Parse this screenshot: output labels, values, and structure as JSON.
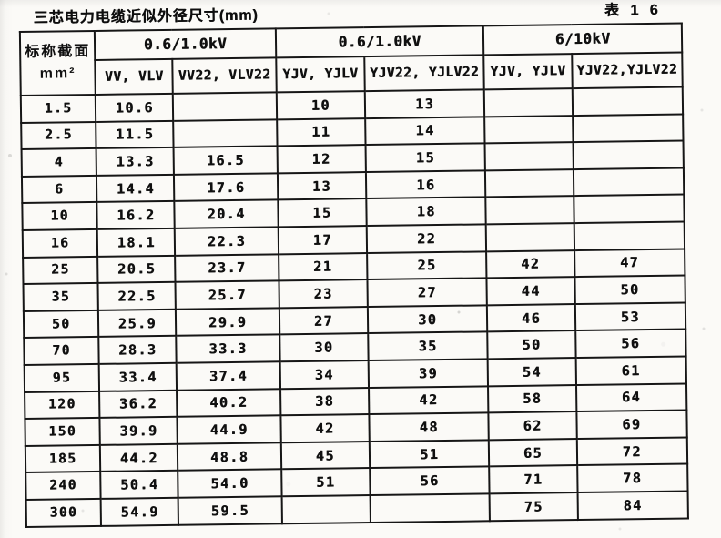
{
  "page": {
    "title": "三芯电力电缆近似外径尺寸(mm)",
    "table_label": "表 1 6"
  },
  "table": {
    "row_header": {
      "line1": "标称截面",
      "line2": "mm²"
    },
    "groups": [
      {
        "label": "0.6/1.0kV",
        "columns": [
          "VV, VLV",
          "VV22, VLV22"
        ]
      },
      {
        "label": "0.6/1.0kV",
        "columns": [
          "YJV, YJLV",
          "YJV22, YJLV22"
        ]
      },
      {
        "label": "6/10kV",
        "columns": [
          "YJV, YJLV",
          "YJV22,YJLV22"
        ]
      }
    ],
    "rows": [
      {
        "section": "1.5",
        "values": [
          "10.6",
          "",
          "10",
          "13",
          "",
          ""
        ]
      },
      {
        "section": "2.5",
        "values": [
          "11.5",
          "",
          "11",
          "14",
          "",
          ""
        ]
      },
      {
        "section": "4",
        "values": [
          "13.3",
          "16.5",
          "12",
          "15",
          "",
          ""
        ]
      },
      {
        "section": "6",
        "values": [
          "14.4",
          "17.6",
          "13",
          "16",
          "",
          ""
        ]
      },
      {
        "section": "10",
        "values": [
          "16.2",
          "20.4",
          "15",
          "18",
          "",
          ""
        ]
      },
      {
        "section": "16",
        "values": [
          "18.1",
          "22.3",
          "17",
          "22",
          "",
          ""
        ]
      },
      {
        "section": "25",
        "values": [
          "20.5",
          "23.7",
          "21",
          "25",
          "42",
          "47"
        ]
      },
      {
        "section": "35",
        "values": [
          "22.5",
          "25.7",
          "23",
          "27",
          "44",
          "50"
        ]
      },
      {
        "section": "50",
        "values": [
          "25.9",
          "29.9",
          "27",
          "30",
          "46",
          "53"
        ]
      },
      {
        "section": "70",
        "values": [
          "28.3",
          "33.3",
          "30",
          "35",
          "50",
          "56"
        ]
      },
      {
        "section": "95",
        "values": [
          "33.4",
          "37.4",
          "34",
          "39",
          "54",
          "61"
        ]
      },
      {
        "section": "120",
        "values": [
          "36.2",
          "40.2",
          "38",
          "42",
          "58",
          "64"
        ]
      },
      {
        "section": "150",
        "values": [
          "39.9",
          "44.9",
          "42",
          "48",
          "62",
          "69"
        ]
      },
      {
        "section": "185",
        "values": [
          "44.2",
          "48.8",
          "45",
          "51",
          "65",
          "72"
        ]
      },
      {
        "section": "240",
        "values": [
          "50.4",
          "54.0",
          "51",
          "56",
          "71",
          "78"
        ]
      },
      {
        "section": "300",
        "values": [
          "54.9",
          "59.5",
          "",
          "",
          "75",
          "84"
        ]
      }
    ]
  },
  "colors": {
    "ink": "#101010",
    "paper": "#fbfaf7"
  }
}
